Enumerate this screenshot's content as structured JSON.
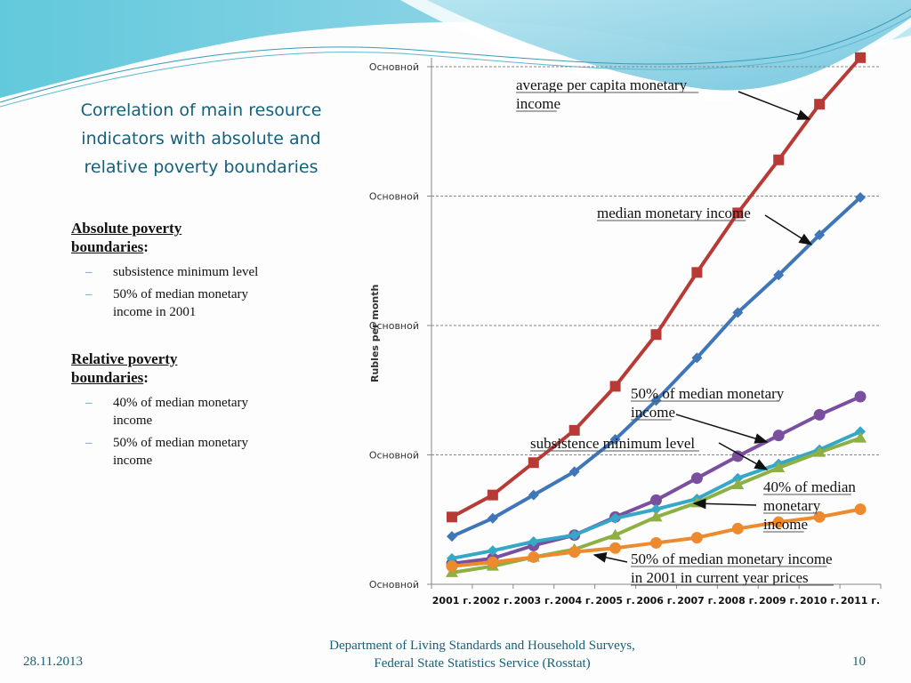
{
  "slide": {
    "title": "Correlation of main resource indicators with absolute and relative poverty boundaries",
    "title_lines": [
      "Correlation of main resource",
      "indicators with absolute and",
      "relative poverty boundaries"
    ],
    "absolute": {
      "heading": "Absolute poverty boundaries",
      "heading_line1": "Absolute poverty",
      "heading_line2": "boundaries",
      "colon": ":",
      "items": [
        {
          "lines": [
            "subsistence minimum level"
          ]
        },
        {
          "lines": [
            "50% of median monetary",
            "income in 2001"
          ]
        }
      ]
    },
    "relative": {
      "heading": "Relative poverty boundaries",
      "heading_line1": "Relative poverty",
      "heading_line2": "boundaries",
      "colon": ":",
      "items": [
        {
          "lines": [
            "40% of median monetary",
            "income"
          ]
        },
        {
          "lines": [
            "50% of median monetary",
            "income"
          ]
        }
      ]
    },
    "bullet_dash": "–",
    "footer": {
      "date": "28.11.2013",
      "org_line1": "Department of Living Standards and Household Surveys,",
      "org_line2": "Federal State Statistics Service (Rosstat)",
      "page": "10"
    },
    "colors": {
      "title": "#17607a",
      "header_wave_dark": "#5fbfd6",
      "header_wave_light": "#a8e0ec"
    }
  },
  "chart_data": {
    "type": "line",
    "title": "",
    "xlabel": "",
    "ylabel": "Rubles per month",
    "categories": [
      "2001 г.",
      "2002 г.",
      "2003 г.",
      "2004 г.",
      "2005 г.",
      "2006 г.",
      "2007 г.",
      "2008 г.",
      "2009 г.",
      "2010 г.",
      "2011 г."
    ],
    "y_tick_labels": [
      "Основной",
      "Основной",
      "Основной",
      "Основной",
      "Основной"
    ],
    "y_ticks": [
      0,
      1,
      2,
      3,
      4
    ],
    "ylim": [
      0,
      4
    ],
    "y_units_note": "axis tick values are unlabeled (all show 'Основной'); values given in gridline units",
    "grid": "horizontal dashed",
    "legend": "none (inline annotations with arrows)",
    "series": [
      {
        "name": "average per capita monetary income",
        "color": "#b83a36",
        "marker": "square",
        "values": [
          0.52,
          0.69,
          0.94,
          1.19,
          1.53,
          1.93,
          2.41,
          2.87,
          3.28,
          3.71,
          4.07
        ]
      },
      {
        "name": "median monetary income",
        "color": "#3f76b8",
        "marker": "diamond",
        "values": [
          0.37,
          0.51,
          0.69,
          0.87,
          1.12,
          1.42,
          1.75,
          2.1,
          2.39,
          2.7,
          2.99
        ]
      },
      {
        "name": "50% of median monetary income",
        "color": "#7a4fa0",
        "marker": "circle",
        "values": [
          0.16,
          0.2,
          0.3,
          0.38,
          0.52,
          0.65,
          0.82,
          0.99,
          1.15,
          1.31,
          1.45
        ]
      },
      {
        "name": "subsistence minimum level",
        "color": "#35a8c8",
        "marker": "diamond",
        "values": [
          0.2,
          0.26,
          0.33,
          0.38,
          0.51,
          0.58,
          0.66,
          0.82,
          0.93,
          1.04,
          1.18
        ]
      },
      {
        "name": "40% of median monetary income",
        "color": "#8cb044",
        "marker": "triangle",
        "values": [
          0.09,
          0.14,
          0.21,
          0.27,
          0.38,
          0.52,
          0.63,
          0.77,
          0.9,
          1.02,
          1.13
        ]
      },
      {
        "name": "50% of median monetary income in 2001 in current year prices",
        "color": "#ee8a2e",
        "marker": "circle",
        "values": [
          0.14,
          0.17,
          0.21,
          0.25,
          0.28,
          0.32,
          0.36,
          0.43,
          0.48,
          0.52,
          0.58
        ]
      }
    ],
    "annotations": [
      {
        "lines": [
          "average per capita monetary",
          "income"
        ],
        "series": 0
      },
      {
        "lines": [
          "median monetary income"
        ],
        "series": 1
      },
      {
        "lines": [
          "50% of median monetary",
          "income"
        ],
        "series": 2
      },
      {
        "lines": [
          "subsistence minimum level"
        ],
        "series": 3
      },
      {
        "lines": [
          "40% of median",
          "monetary",
          "income"
        ],
        "series": 4
      },
      {
        "lines": [
          "50% of median monetary income",
          "in 2001 in current year prices"
        ],
        "series": 5
      }
    ]
  }
}
